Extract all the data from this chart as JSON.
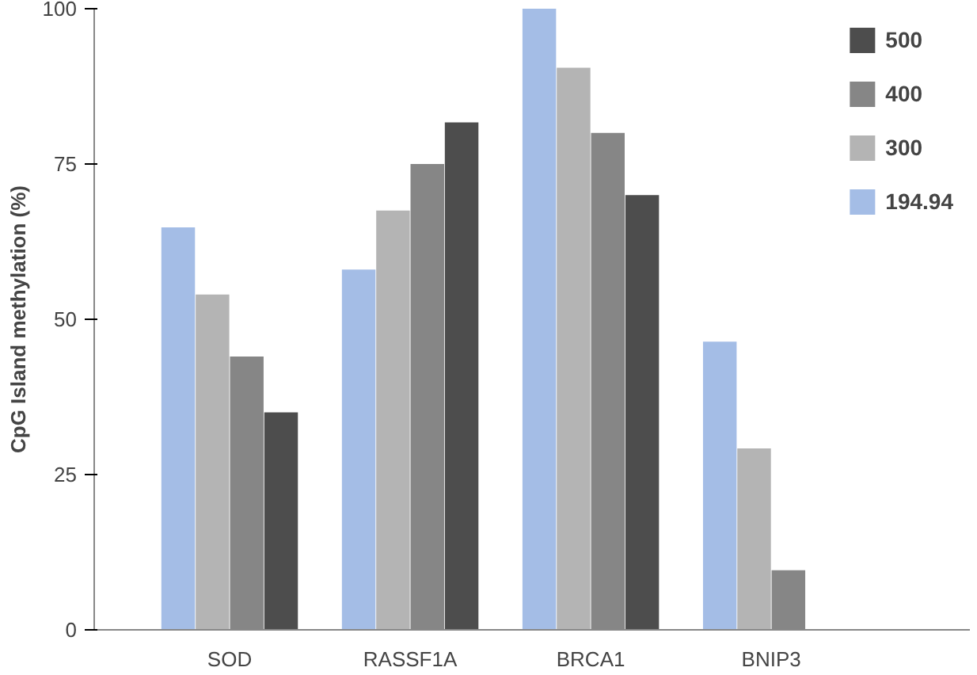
{
  "chart_data": {
    "type": "bar",
    "ylabel": "CpG Island methylation (%)",
    "categories": [
      "SOD",
      "RASSF1A",
      "BRCA1",
      "BNIP3"
    ],
    "series": [
      {
        "name": "194.94",
        "color": "#a4bde6",
        "values": [
          64.8,
          58,
          100,
          46.4
        ]
      },
      {
        "name": "300",
        "color": "#b4b4b4",
        "values": [
          54,
          67.5,
          90.5,
          29.2
        ]
      },
      {
        "name": "400",
        "color": "#868686",
        "values": [
          44,
          75,
          80,
          9.6
        ]
      },
      {
        "name": "500",
        "color": "#4d4d4d",
        "values": [
          35,
          81.7,
          70,
          null
        ]
      }
    ],
    "ylim": [
      0,
      100
    ],
    "yticks": [
      0,
      25,
      50,
      75,
      100
    ],
    "grid": false,
    "legend": "top right"
  }
}
